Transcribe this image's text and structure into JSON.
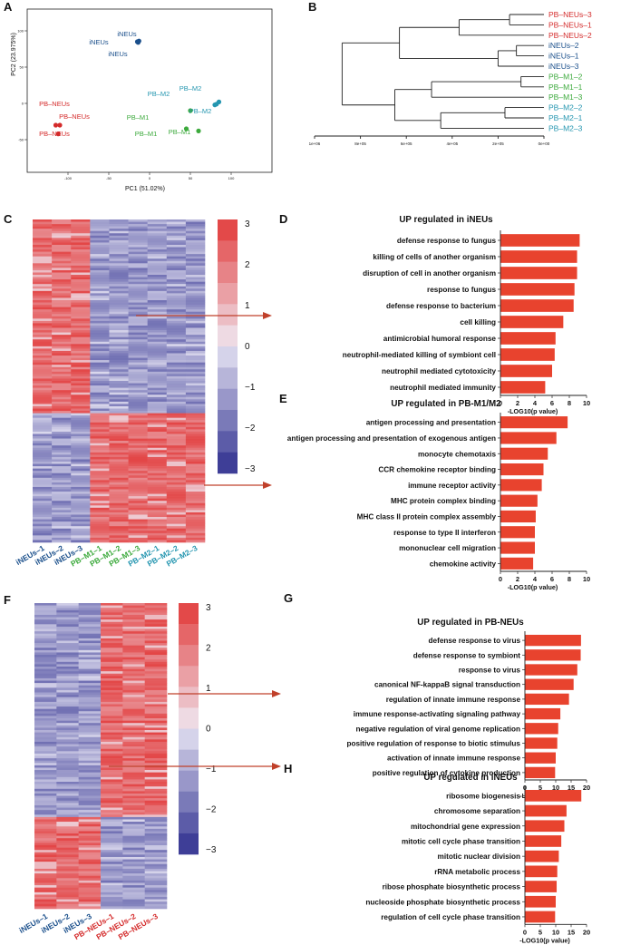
{
  "panels": {
    "A": {
      "letter": "A",
      "xlabel": "PC1 (51.02%)",
      "ylabel": "PC2 (23.975%)",
      "xticks": [
        "-100",
        "-50",
        "0",
        "50",
        "100"
      ],
      "yticks": [
        "100",
        "50",
        "0",
        "-50"
      ],
      "groups": [
        {
          "name": "iNEUs",
          "color": "#1a4f8b",
          "labels": [
            "iNEUs",
            "iNEUs",
            "iNEUs"
          ]
        },
        {
          "name": "PB-NEUs",
          "color": "#d42b2b",
          "labels": [
            "PB–NEUs",
            "PB–NEUs",
            "PB–NEUs"
          ]
        },
        {
          "name": "PB-M1",
          "color": "#3daa3d",
          "labels": [
            "PB–M1",
            "PB–M1",
            "PB–M1"
          ]
        },
        {
          "name": "PB-M2",
          "color": "#2596b0",
          "labels": [
            "PB–M2",
            "PB–M2",
            "PB–M2"
          ]
        }
      ],
      "points": [
        {
          "group": 0,
          "x": -15,
          "y": 85
        },
        {
          "group": 0,
          "x": -13,
          "y": 86
        },
        {
          "group": 0,
          "x": -14,
          "y": 84
        },
        {
          "group": 1,
          "x": -115,
          "y": -30
        },
        {
          "group": 1,
          "x": -112,
          "y": -42
        },
        {
          "group": 1,
          "x": -110,
          "y": -30
        },
        {
          "group": 2,
          "x": 50,
          "y": -10
        },
        {
          "group": 2,
          "x": 45,
          "y": -35
        },
        {
          "group": 2,
          "x": 60,
          "y": -38
        },
        {
          "group": 3,
          "x": 80,
          "y": -2
        },
        {
          "group": 3,
          "x": 85,
          "y": 2
        },
        {
          "group": 3,
          "x": 82,
          "y": -1
        }
      ]
    },
    "B": {
      "letter": "B",
      "ticks": [
        "1e+06",
        "8e+05",
        "6e+05",
        "4e+05",
        "2e+05",
        "0e+00"
      ],
      "leaves": [
        {
          "label": "PB–NEUs–3",
          "color": "#d42b2b"
        },
        {
          "label": "PB–NEUs–1",
          "color": "#d42b2b"
        },
        {
          "label": "PB–NEUs–2",
          "color": "#d42b2b"
        },
        {
          "label": "iNEUs–2",
          "color": "#1a4f8b"
        },
        {
          "label": "iNEUs–1",
          "color": "#1a4f8b"
        },
        {
          "label": "iNEUs–3",
          "color": "#1a4f8b"
        },
        {
          "label": "PB–M1–2",
          "color": "#3daa3d"
        },
        {
          "label": "PB–M1–1",
          "color": "#3daa3d"
        },
        {
          "label": "PB–M1–3",
          "color": "#3daa3d"
        },
        {
          "label": "PB–M2–2",
          "color": "#2596b0"
        },
        {
          "label": "PB–M2–1",
          "color": "#2596b0"
        },
        {
          "label": "PB–M2–3",
          "color": "#2596b0"
        }
      ]
    },
    "C": {
      "letter": "C",
      "columns": [
        {
          "label": "iNEUs–1",
          "color": "#1a4f8b"
        },
        {
          "label": "iNEUs–2",
          "color": "#1a4f8b"
        },
        {
          "label": "iNEUs–3",
          "color": "#1a4f8b"
        },
        {
          "label": "PB–M1–1",
          "color": "#3daa3d"
        },
        {
          "label": "PB–M1–2",
          "color": "#3daa3d"
        },
        {
          "label": "PB–M1–3",
          "color": "#3daa3d"
        },
        {
          "label": "PB–M2–1",
          "color": "#2596b0"
        },
        {
          "label": "PB–M2–2",
          "color": "#2596b0"
        },
        {
          "label": "PB–M2–3",
          "color": "#2596b0"
        }
      ],
      "colorbar_ticks": [
        "3",
        "2",
        "1",
        "0",
        "−1",
        "−2",
        "−3"
      ],
      "top_block": {
        "high_columns": [
          0,
          1,
          2
        ],
        "fraction_rows": 0.6
      },
      "bottom_block": {
        "high_columns": [
          3,
          4,
          5,
          6,
          7,
          8
        ]
      }
    },
    "F": {
      "letter": "F",
      "columns": [
        {
          "label": "iNEUs–1",
          "color": "#1a4f8b"
        },
        {
          "label": "iNEUs–2",
          "color": "#1a4f8b"
        },
        {
          "label": "iNEUs–3",
          "color": "#1a4f8b"
        },
        {
          "label": "PB–NEUs–1",
          "color": "#d42b2b"
        },
        {
          "label": "PB–NEUs–2",
          "color": "#d42b2b"
        },
        {
          "label": "PB–NEUs–3",
          "color": "#d42b2b"
        }
      ],
      "colorbar_ticks": [
        "3",
        "2",
        "1",
        "0",
        "−1",
        "−2",
        "−3"
      ],
      "top_block": {
        "high_columns": [
          3,
          4,
          5
        ],
        "fraction_rows": 0.7
      },
      "bottom_block": {
        "high_columns": [
          0,
          1,
          2
        ]
      }
    }
  },
  "chart_data": [
    {
      "panel": "D",
      "type": "bar",
      "orientation": "horizontal",
      "title": "UP regulated in iNEUs",
      "xlabel": "-LOG10(p value)",
      "xlim": [
        0,
        10
      ],
      "xticks": [
        0,
        2,
        4,
        6,
        8,
        10
      ],
      "categories": [
        "defense response to fungus",
        "killing of cells of another organism",
        "disruption of cell in another organism",
        "response to fungus",
        "defense response to bacterium",
        "cell killing",
        "antimicrobial humoral response",
        "neutrophil-mediated killing of symbiont cell",
        "neutrophil mediated cytotoxicity",
        "neutrophil mediated immunity"
      ],
      "values": [
        9.2,
        8.9,
        8.9,
        8.6,
        8.5,
        7.3,
        6.4,
        6.3,
        6.0,
        5.2
      ],
      "color": "#e8432e"
    },
    {
      "panel": "E",
      "type": "bar",
      "orientation": "horizontal",
      "title": "UP regulated in PB-M1/M2",
      "xlabel": "-LOG10(p value)",
      "xlim": [
        0,
        10
      ],
      "xticks": [
        0,
        2,
        4,
        6,
        8,
        10
      ],
      "categories": [
        "antigen processing and presentation",
        "antigen processing and presentation of exogenous antigen",
        "monocyte chemotaxis",
        "CCR chemokine receptor binding",
        "immune receptor activity",
        "MHC protein complex binding",
        "MHC class II protein complex assembly",
        "response to type II interferon",
        "mononuclear cell migration",
        "chemokine activity"
      ],
      "values": [
        7.8,
        6.5,
        5.5,
        5.0,
        4.8,
        4.3,
        4.1,
        4.0,
        4.0,
        3.8
      ],
      "color": "#e8432e"
    },
    {
      "panel": "G",
      "type": "bar",
      "orientation": "horizontal",
      "title": "UP regulated in PB-NEUs",
      "xlabel": "-LOG10(p value)",
      "xlim": [
        0,
        20
      ],
      "xticks": [
        0,
        5,
        10,
        15,
        20
      ],
      "categories": [
        "defense response to virus",
        "defense response to symbiont",
        "response to virus",
        "canonical NF-kappaB signal transduction",
        "regulation of innate immune response",
        "immune response-activating signaling pathway",
        "negative regulation of viral genome replication",
        "positive regulation of response to biotic stimulus",
        "activation of innate immune response",
        "positive regulation of cytokine production"
      ],
      "values": [
        18.2,
        18.1,
        17.0,
        15.8,
        14.3,
        11.5,
        10.8,
        10.5,
        10.0,
        9.8
      ],
      "color": "#e8432e"
    },
    {
      "panel": "H",
      "type": "bar",
      "orientation": "horizontal",
      "title": "UP regulated in iNEUs",
      "xlabel": "-LOG10(p value)",
      "xlim": [
        0,
        20
      ],
      "xticks": [
        0,
        5,
        10,
        15,
        20
      ],
      "categories": [
        "ribosome biogenesis",
        "chromosome separation",
        "mitochondrial gene expression",
        "mitotic cell cycle phase transition",
        "mitotic nuclear division",
        "rRNA metabolic process",
        "ribose phosphate biosynthetic process",
        "nucleoside phosphate biosynthetic process",
        "regulation of cell cycle phase transition"
      ],
      "values": [
        18.3,
        13.5,
        12.8,
        11.8,
        11.0,
        10.5,
        10.3,
        10.0,
        9.8
      ],
      "color": "#e8432e"
    }
  ],
  "colors": {
    "high": "#e23a3a",
    "low": "#2f2f8f",
    "arrow": "#c0402a",
    "bar": "#e8432e"
  }
}
